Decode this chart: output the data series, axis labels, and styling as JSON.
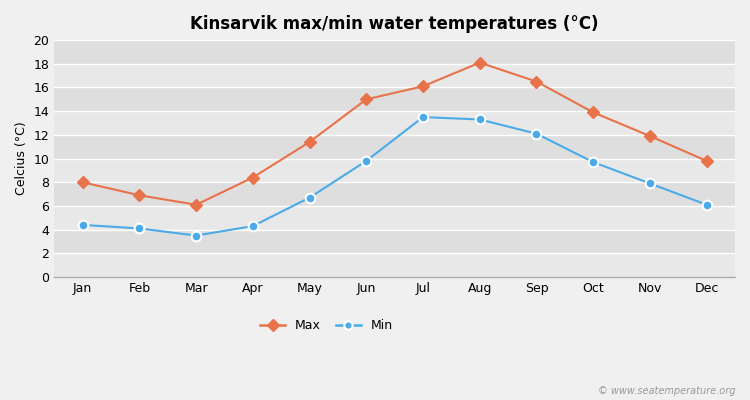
{
  "title": "Kinsarvik max/min water temperatures (°C)",
  "ylabel": "Celcius (°C)",
  "months": [
    "Jan",
    "Feb",
    "Mar",
    "Apr",
    "May",
    "Jun",
    "Jul",
    "Aug",
    "Sep",
    "Oct",
    "Nov",
    "Dec"
  ],
  "max_values": [
    8.0,
    6.9,
    6.1,
    8.4,
    11.4,
    15.0,
    16.1,
    18.1,
    16.5,
    13.9,
    11.9,
    9.8
  ],
  "min_values": [
    4.4,
    4.1,
    3.5,
    4.3,
    6.7,
    9.8,
    13.5,
    13.3,
    12.1,
    9.7,
    7.9,
    6.1
  ],
  "max_color": "#e8724a",
  "min_color": "#4aabe8",
  "bg_color": "#f0f0f0",
  "band_colors": [
    "#e8e8e8",
    "#ebebeb"
  ],
  "ylim": [
    0,
    20
  ],
  "yticks": [
    0,
    2,
    4,
    6,
    8,
    10,
    12,
    14,
    16,
    18,
    20
  ],
  "watermark": "© www.seatemperature.org",
  "legend_max": "Max",
  "legend_min": "Min",
  "title_fontsize": 12,
  "axis_fontsize": 9,
  "tick_fontsize": 9
}
